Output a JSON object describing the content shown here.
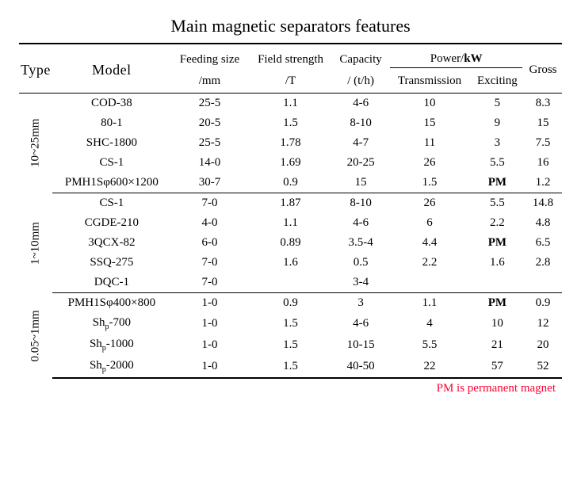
{
  "title": "Main magnetic separators features",
  "header": {
    "type": "Type",
    "model": "Model",
    "feeding_top": "Feeding size",
    "feeding_bot": "/mm",
    "field_top": "Field strength",
    "field_bot": "/T",
    "capacity_top": "Capacity",
    "capacity_bot": "/ (t/h)",
    "power_group": "Power/",
    "power_unit": "kW",
    "power_trans": "Transmission",
    "power_exc": "Exciting",
    "gross": "Gross"
  },
  "groups": [
    {
      "type": "10~25mm",
      "rows": [
        {
          "model": "COD-38",
          "feed": "25-5",
          "field": "1.1",
          "cap": "4-6",
          "trans": "10",
          "exc": "5",
          "gross": "8.3"
        },
        {
          "model": "80-1",
          "feed": "20-5",
          "field": "1.5",
          "cap": "8-10",
          "trans": "15",
          "exc": "9",
          "gross": "15"
        },
        {
          "model": "SHC-1800",
          "feed": "25-5",
          "field": "1.78",
          "cap": "4-7",
          "trans": "11",
          "exc": "3",
          "gross": "7.5"
        },
        {
          "model": "CS-1",
          "feed": "14-0",
          "field": "1.69",
          "cap": "20-25",
          "trans": "26",
          "exc": "5.5",
          "gross": "16"
        },
        {
          "model": "PMH1Sφ600×1200",
          "feed": "30-7",
          "field": "0.9",
          "cap": "15",
          "trans": "1.5",
          "exc": "PM",
          "gross": "1.2"
        }
      ]
    },
    {
      "type": "1~10mm",
      "rows": [
        {
          "model": "CS-1",
          "feed": "7-0",
          "field": "1.87",
          "cap": "8-10",
          "trans": "26",
          "exc": "5.5",
          "gross": "14.8"
        },
        {
          "model": "CGDE-210",
          "feed": "4-0",
          "field": "1.1",
          "cap": "4-6",
          "trans": "6",
          "exc": "2.2",
          "gross": "4.8"
        },
        {
          "model": "3QCX-82",
          "feed": "6-0",
          "field": "0.89",
          "cap": "3.5-4",
          "trans": "4.4",
          "exc": "PM",
          "gross": "6.5"
        },
        {
          "model": "SSQ-275",
          "feed": "7-0",
          "field": "1.6",
          "cap": "0.5",
          "trans": "2.2",
          "exc": "1.6",
          "gross": "2.8"
        },
        {
          "model": "DQC-1",
          "feed": "7-0",
          "field": "",
          "cap": "3-4",
          "trans": "",
          "exc": "",
          "gross": ""
        }
      ]
    },
    {
      "type": "0.05~1mm",
      "rows": [
        {
          "model": "PMH1Sφ400×800",
          "feed": "1-0",
          "field": "0.9",
          "cap": "3",
          "trans": "1.1",
          "exc": "PM",
          "gross": "0.9"
        },
        {
          "model": "Sh_p-700",
          "feed": "1-0",
          "field": "1.5",
          "cap": "4-6",
          "trans": "4",
          "exc": "10",
          "gross": "12"
        },
        {
          "model": "Sh_p-1000",
          "feed": "1-0",
          "field": "1.5",
          "cap": "10-15",
          "trans": "5.5",
          "exc": "21",
          "gross": "20"
        },
        {
          "model": "Sh_p-2000",
          "feed": "1-0",
          "field": "1.5",
          "cap": "40-50",
          "trans": "22",
          "exc": "57",
          "gross": "52"
        }
      ]
    }
  ],
  "footnote": "PM is permanent magnet"
}
